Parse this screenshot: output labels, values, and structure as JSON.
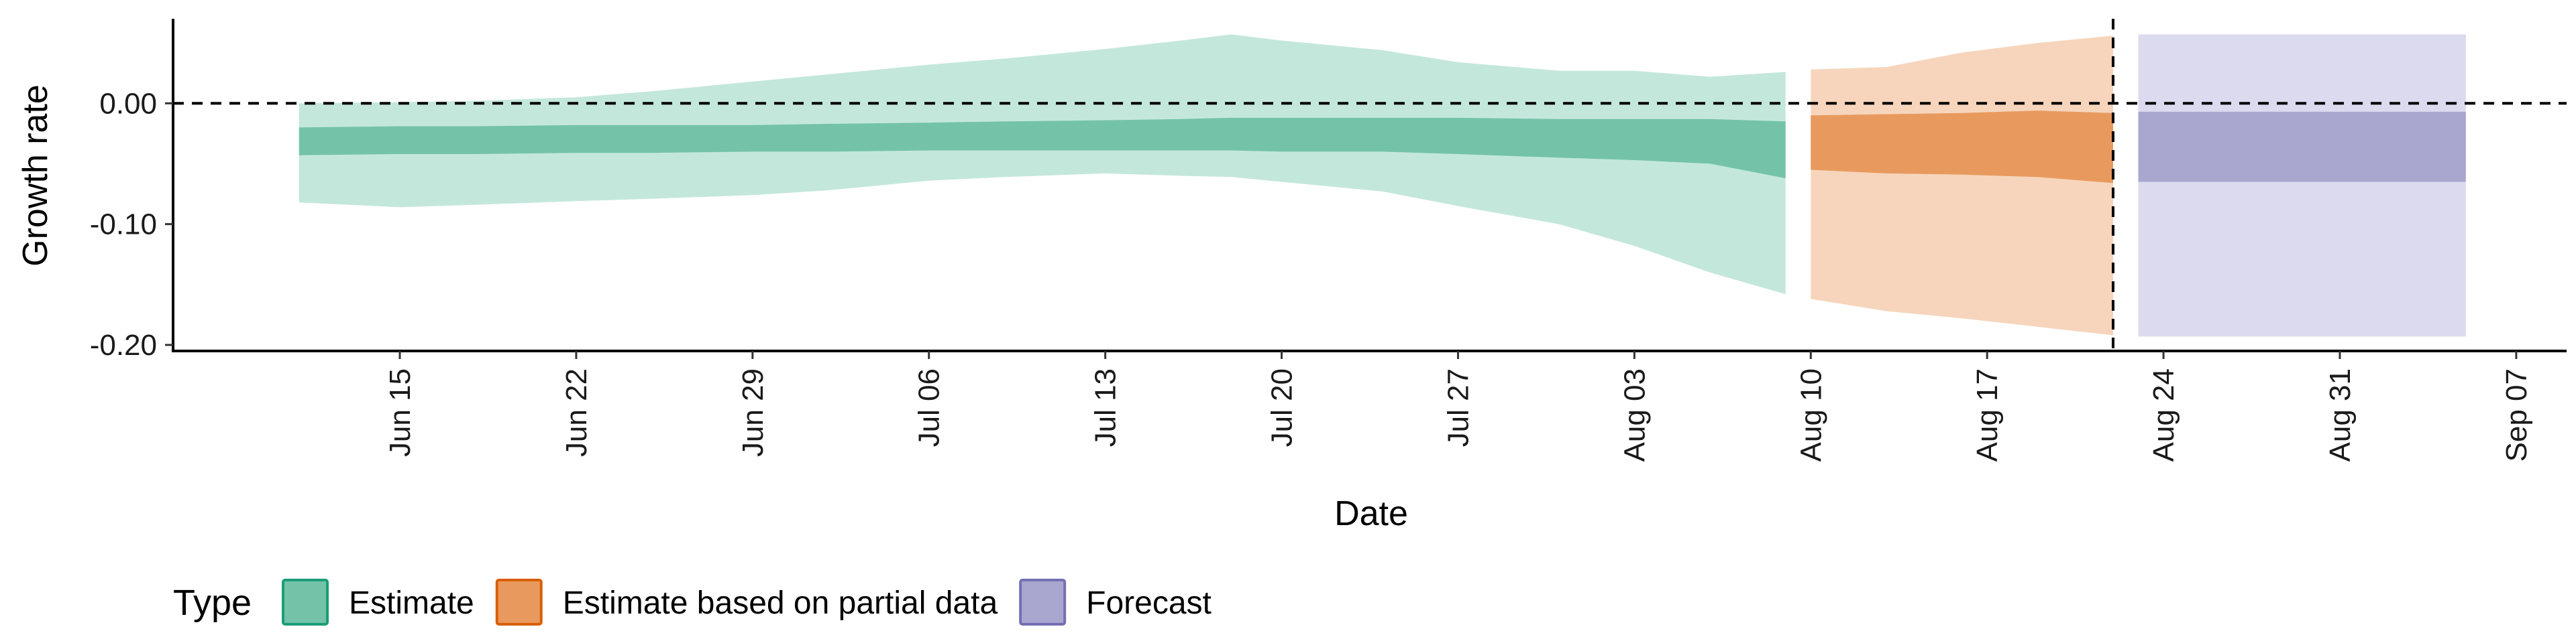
{
  "chart_data": {
    "type": "area",
    "title": "",
    "xlabel": "Date",
    "ylabel": "Growth rate",
    "ylim": [
      -0.205,
      0.07
    ],
    "xlim": [
      "2020-06-06",
      "2020-09-09"
    ],
    "x_ticks": [
      "Jun 15",
      "Jun 22",
      "Jun 29",
      "Jul 06",
      "Jul 13",
      "Jul 20",
      "Jul 27",
      "Aug 03",
      "Aug 10",
      "Aug 17",
      "Aug 24",
      "Aug 31",
      "Sep 07"
    ],
    "x_tick_dates": [
      "2020-06-15",
      "2020-06-22",
      "2020-06-29",
      "2020-07-06",
      "2020-07-13",
      "2020-07-20",
      "2020-07-27",
      "2020-08-03",
      "2020-08-10",
      "2020-08-17",
      "2020-08-24",
      "2020-08-31",
      "2020-09-07"
    ],
    "y_ticks": [
      0.0,
      -0.1,
      -0.2
    ],
    "y_tick_labels": [
      "0.00",
      "-0.10",
      "-0.20"
    ],
    "reference_hline": 0.0,
    "reference_vline": "2020-08-22",
    "legend": {
      "title": "Type",
      "position": "bottom",
      "items": [
        {
          "label": "Estimate",
          "fill": "#74c3a9",
          "border": "#1b9e77"
        },
        {
          "label": "Estimate based on partial data",
          "fill": "#e89a5e",
          "border": "#d95f02"
        },
        {
          "label": "Forecast",
          "fill": "#a9a6d0",
          "border": "#7570b3"
        }
      ]
    },
    "series": [
      {
        "name": "Estimate",
        "outer_color": "#c4e7dc",
        "inner_color": "#74c3a9",
        "points": [
          {
            "x": "2020-06-11",
            "outer": [
              -0.082,
              0.0
            ],
            "inner": [
              -0.043,
              -0.02
            ]
          },
          {
            "x": "2020-06-15",
            "outer": [
              -0.086,
              0.001
            ],
            "inner": [
              -0.042,
              -0.019
            ]
          },
          {
            "x": "2020-06-18",
            "outer": [
              -0.084,
              0.002
            ],
            "inner": [
              -0.042,
              -0.019
            ]
          },
          {
            "x": "2020-06-22",
            "outer": [
              -0.081,
              0.005
            ],
            "inner": [
              -0.041,
              -0.018
            ]
          },
          {
            "x": "2020-06-25",
            "outer": [
              -0.079,
              0.01
            ],
            "inner": [
              -0.041,
              -0.018
            ]
          },
          {
            "x": "2020-06-29",
            "outer": [
              -0.076,
              0.018
            ],
            "inner": [
              -0.04,
              -0.018
            ]
          },
          {
            "x": "2020-07-02",
            "outer": [
              -0.072,
              0.024
            ],
            "inner": [
              -0.04,
              -0.017
            ]
          },
          {
            "x": "2020-07-06",
            "outer": [
              -0.064,
              0.032
            ],
            "inner": [
              -0.039,
              -0.016
            ]
          },
          {
            "x": "2020-07-09",
            "outer": [
              -0.061,
              0.037
            ],
            "inner": [
              -0.039,
              -0.015
            ]
          },
          {
            "x": "2020-07-13",
            "outer": [
              -0.058,
              0.045
            ],
            "inner": [
              -0.039,
              -0.014
            ]
          },
          {
            "x": "2020-07-16",
            "outer": [
              -0.06,
              0.052
            ],
            "inner": [
              -0.039,
              -0.013
            ]
          },
          {
            "x": "2020-07-18",
            "outer": [
              -0.061,
              0.057
            ],
            "inner": [
              -0.039,
              -0.012
            ]
          },
          {
            "x": "2020-07-20",
            "outer": [
              -0.065,
              0.052
            ],
            "inner": [
              -0.04,
              -0.012
            ]
          },
          {
            "x": "2020-07-24",
            "outer": [
              -0.073,
              0.044
            ],
            "inner": [
              -0.04,
              -0.012
            ]
          },
          {
            "x": "2020-07-27",
            "outer": [
              -0.085,
              0.034
            ],
            "inner": [
              -0.042,
              -0.012
            ]
          },
          {
            "x": "2020-07-31",
            "outer": [
              -0.1,
              0.027
            ],
            "inner": [
              -0.045,
              -0.013
            ]
          },
          {
            "x": "2020-08-03",
            "outer": [
              -0.118,
              0.027
            ],
            "inner": [
              -0.047,
              -0.013
            ]
          },
          {
            "x": "2020-08-06",
            "outer": [
              -0.14,
              0.022
            ],
            "inner": [
              -0.05,
              -0.013
            ]
          },
          {
            "x": "2020-08-09",
            "outer": [
              -0.158,
              0.026
            ],
            "inner": [
              -0.062,
              -0.015
            ]
          }
        ]
      },
      {
        "name": "Estimate based on partial data",
        "outer_color": "#f6d5bc",
        "inner_color": "#e89a5e",
        "points": [
          {
            "x": "2020-08-10",
            "outer": [
              -0.162,
              0.028
            ],
            "inner": [
              -0.055,
              -0.01
            ]
          },
          {
            "x": "2020-08-13",
            "outer": [
              -0.172,
              0.03
            ],
            "inner": [
              -0.058,
              -0.009
            ]
          },
          {
            "x": "2020-08-16",
            "outer": [
              -0.178,
              0.042
            ],
            "inner": [
              -0.059,
              -0.008
            ]
          },
          {
            "x": "2020-08-19",
            "outer": [
              -0.185,
              0.05
            ],
            "inner": [
              -0.061,
              -0.006
            ]
          },
          {
            "x": "2020-08-22",
            "outer": [
              -0.192,
              0.056
            ],
            "inner": [
              -0.066,
              -0.008
            ]
          }
        ]
      },
      {
        "name": "Forecast",
        "outer_color": "#dcdaee",
        "inner_color": "#a9a6d0",
        "points": [
          {
            "x": "2020-08-23",
            "outer": [
              -0.193,
              0.057
            ],
            "inner": [
              -0.065,
              -0.007
            ]
          },
          {
            "x": "2020-09-05",
            "outer": [
              -0.193,
              0.057
            ],
            "inner": [
              -0.065,
              -0.007
            ]
          }
        ]
      }
    ]
  }
}
